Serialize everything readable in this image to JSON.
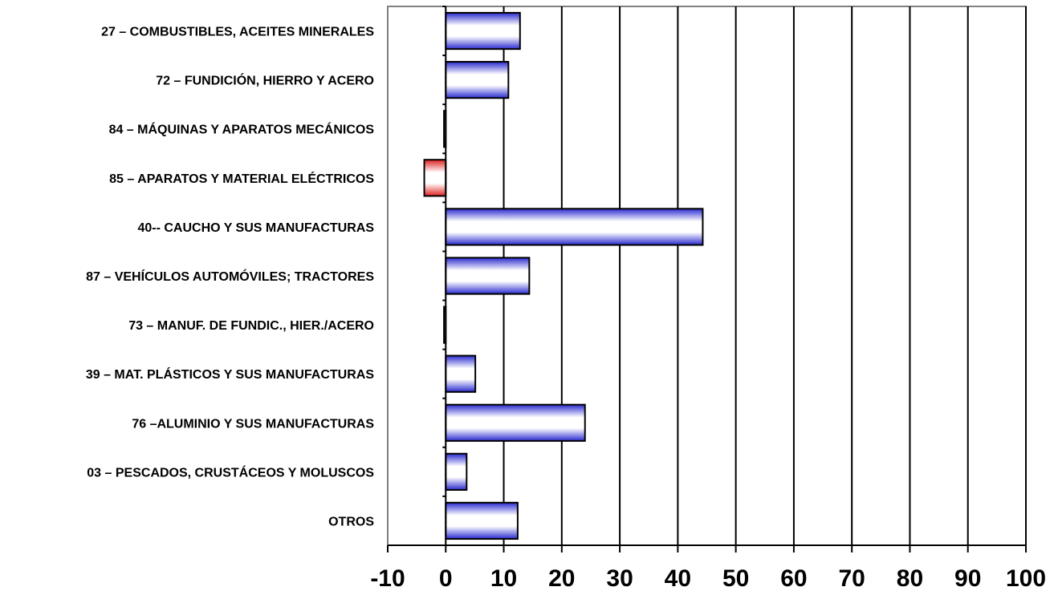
{
  "chart_data": {
    "type": "bar",
    "orientation": "horizontal",
    "title": "",
    "xlabel": "",
    "ylabel": "",
    "categories": [
      "27 – COMBUSTIBLES, ACEITES MINERALES",
      "72 – FUNDICIÓN, HIERRO Y ACERO",
      "84 – MÁQUINAS Y APARATOS MECÁNICOS",
      "85 – APARATOS Y MATERIAL ELÉCTRICOS",
      "40-- CAUCHO Y SUS MANUFACTURAS",
      "87 – VEHÍCULOS AUTOMÓVILES; TRACTORES",
      "73 – MANUF. DE FUNDIC., HIER./ACERO",
      "39 – MAT. PLÁSTICOS Y SUS MANUFACTURAS",
      "76 –ALUMINIO Y SUS MANUFACTURAS",
      "03 – PESCADOS, CRUSTÁCEOS Y MOLUSCOS",
      "OTROS"
    ],
    "values": [
      12.8,
      10.8,
      -0.3,
      -3.7,
      44.3,
      14.4,
      -0.3,
      5.1,
      24.0,
      3.6,
      12.4
    ],
    "xlim": [
      -10,
      100
    ],
    "xticks": [
      -10,
      0,
      10,
      20,
      30,
      40,
      50,
      60,
      70,
      80,
      90,
      100
    ],
    "grid": "vertical",
    "legend": "none",
    "colors": {
      "positive": "#3333cc",
      "negative": "#dd2222",
      "grid": "#000000",
      "axis": "#000000",
      "frame": "#808080"
    }
  }
}
